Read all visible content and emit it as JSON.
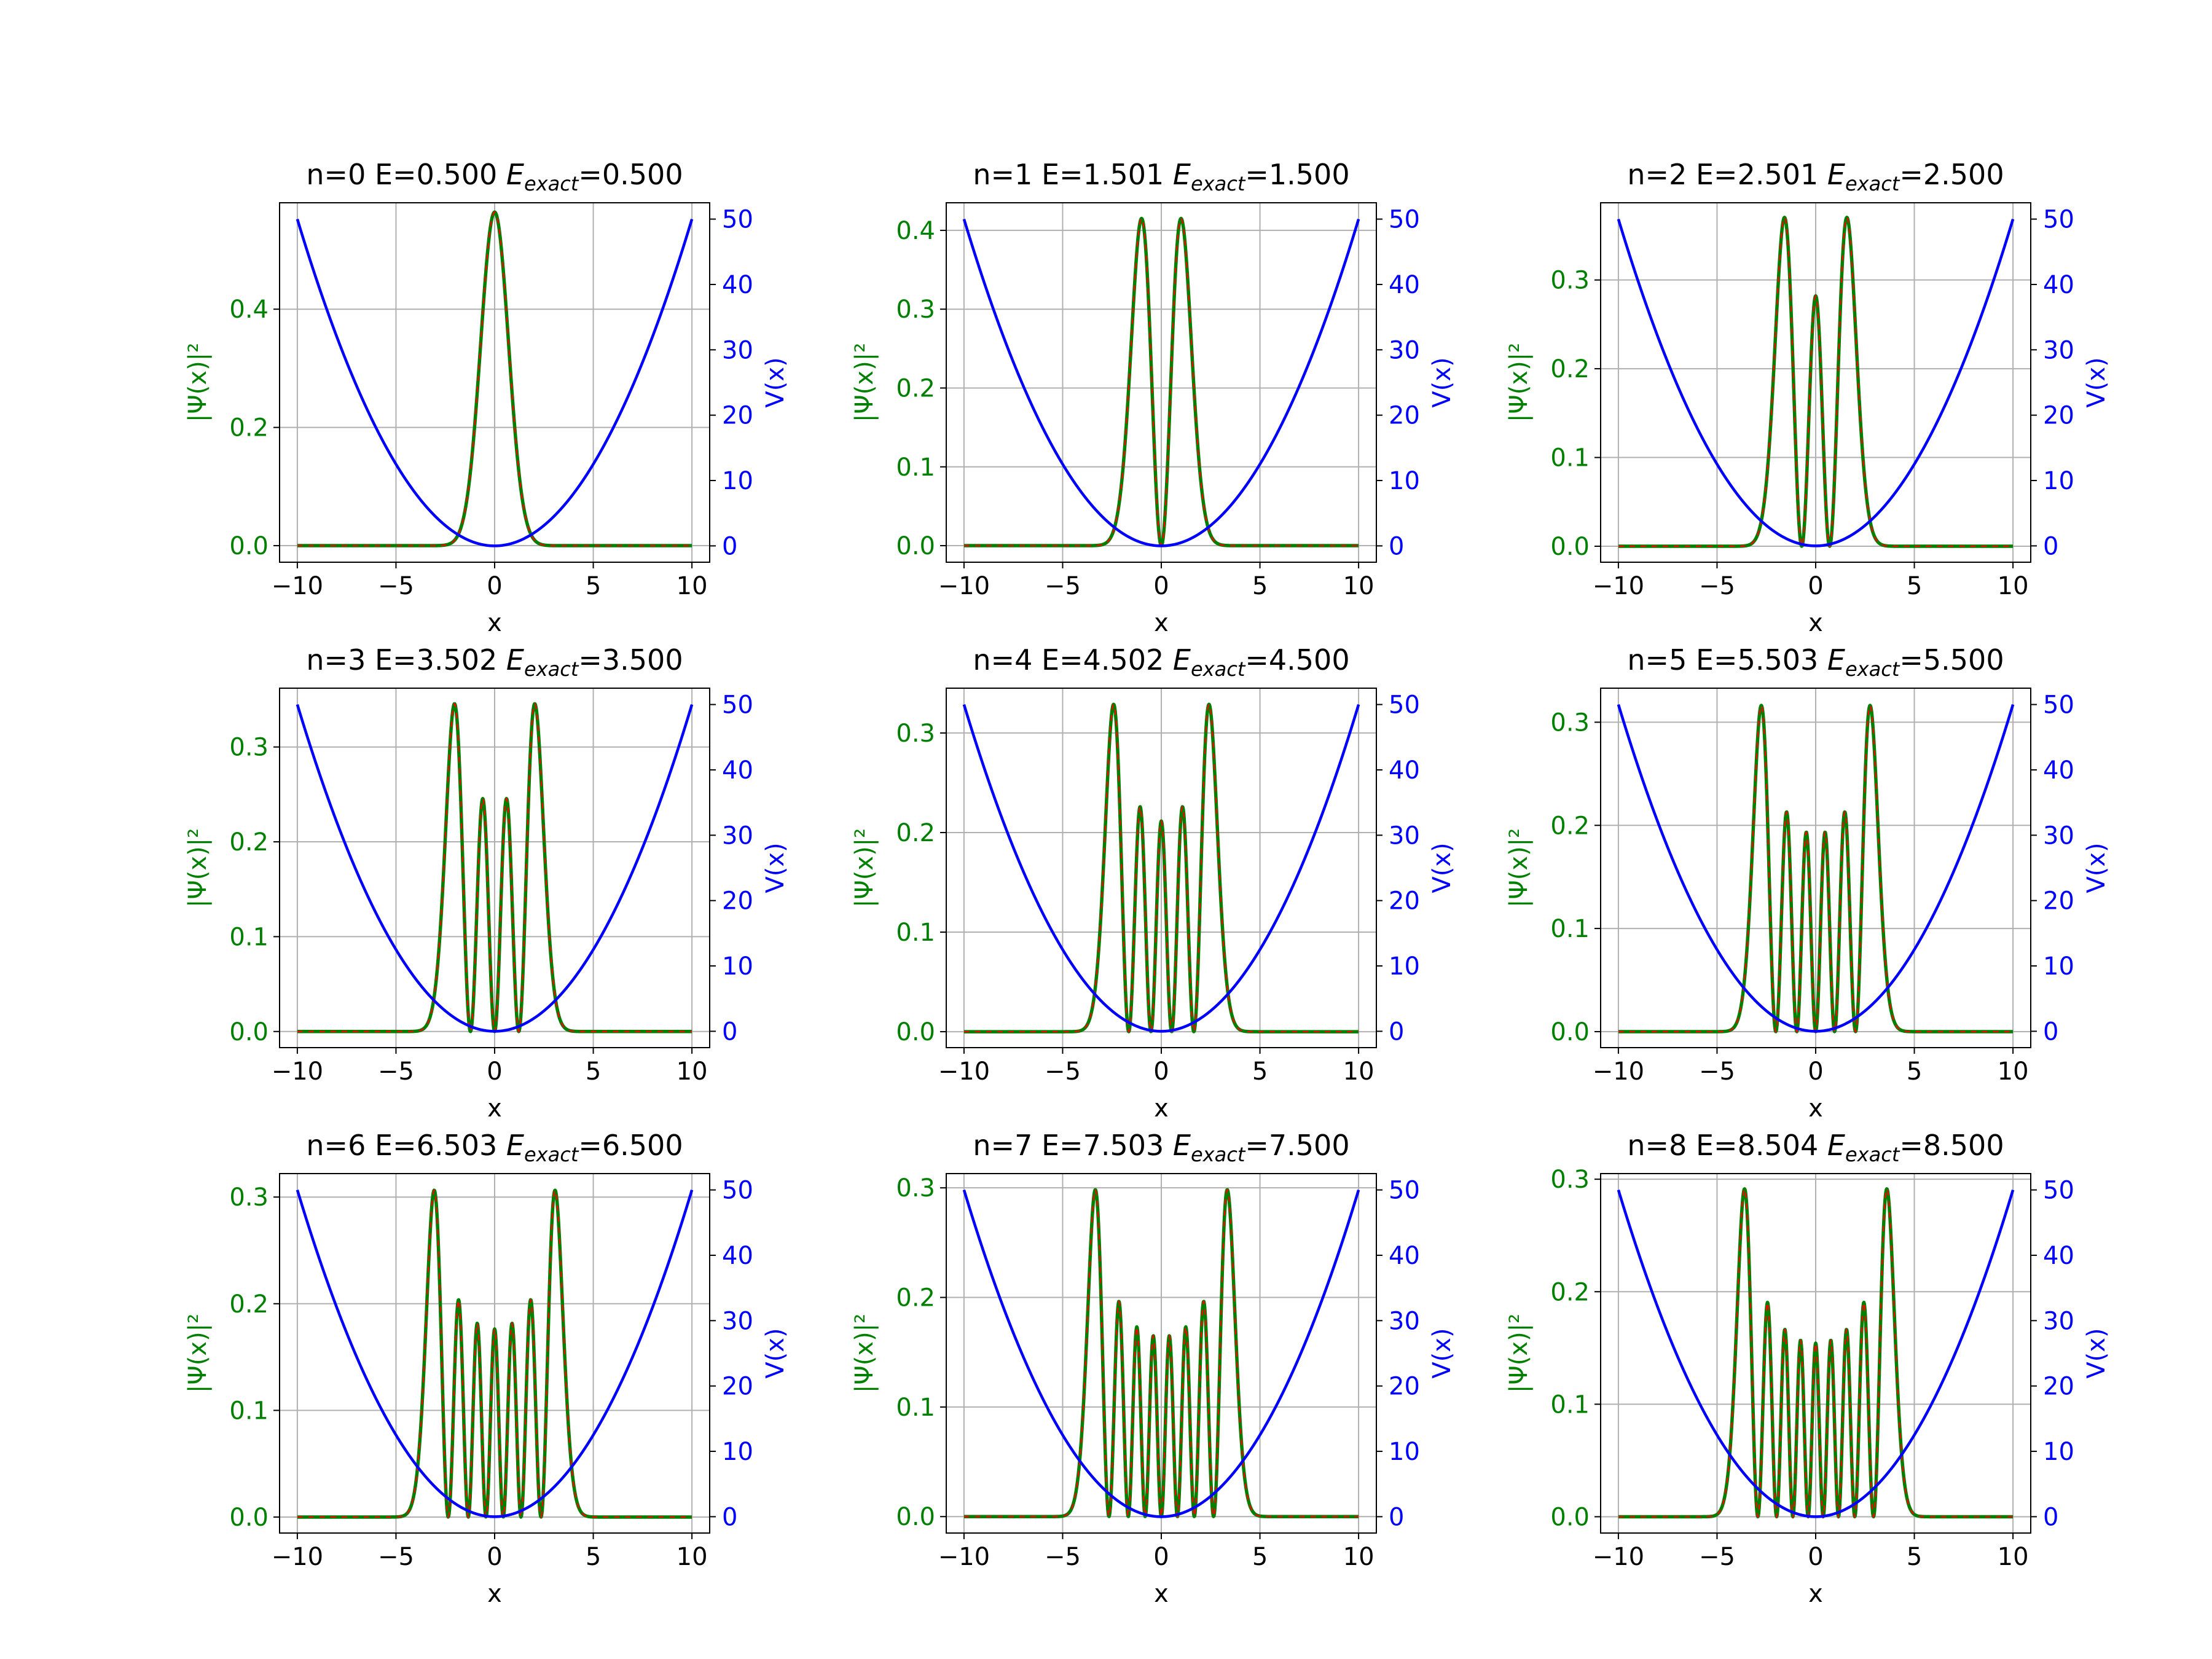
{
  "figure": {
    "background": "#ffffff"
  },
  "colors": {
    "psi_numeric": "#008000",
    "psi_exact": "#ff0000",
    "potential": "#0000ff",
    "grid": "#b0b0b0",
    "frame": "#000000"
  },
  "chart_data": [
    {
      "type": "line",
      "n": 0,
      "title": "n=0 E=0.500",
      "title_exact_label": "E",
      "title_exact_sub": "exact",
      "title_exact_value": "=0.500",
      "xlabel": "x",
      "ylabel_left": "|Ψ(x)|²",
      "ylabel_right": "V(x)",
      "xlim": [
        -10.9,
        10.9
      ],
      "ylim_left": [
        -0.028,
        0.58
      ],
      "ylim_right": [
        -2.5,
        52.5
      ],
      "xticks": [
        -10,
        -5,
        0,
        5,
        10
      ],
      "xtick_labels": [
        "−10",
        "−5",
        "0",
        "5",
        "10"
      ],
      "yticks_left": [
        0.0,
        0.2,
        0.4
      ],
      "ytick_labels_left": [
        "0.0",
        "0.2",
        "0.4"
      ],
      "yticks_right": [
        0,
        10,
        20,
        30,
        40,
        50
      ],
      "ytick_labels_right": [
        "0",
        "10",
        "20",
        "30",
        "40",
        "50"
      ],
      "grid": true,
      "series": [
        {
          "role": "numeric",
          "style": "solid"
        },
        {
          "role": "exact",
          "style": "dashed"
        },
        {
          "role": "potential",
          "function": "0.5*x^2"
        }
      ]
    },
    {
      "type": "line",
      "n": 1,
      "title": "n=1 E=1.501",
      "title_exact_label": "E",
      "title_exact_sub": "exact",
      "title_exact_value": "=1.500",
      "xlabel": "x",
      "ylabel_left": "|Ψ(x)|²",
      "ylabel_right": "V(x)",
      "xlim": [
        -10.9,
        10.9
      ],
      "ylim_left": [
        -0.021,
        0.435
      ],
      "ylim_right": [
        -2.5,
        52.5
      ],
      "xticks": [
        -10,
        -5,
        0,
        5,
        10
      ],
      "xtick_labels": [
        "−10",
        "−5",
        "0",
        "5",
        "10"
      ],
      "yticks_left": [
        0.0,
        0.1,
        0.2,
        0.3,
        0.4
      ],
      "ytick_labels_left": [
        "0.0",
        "0.1",
        "0.2",
        "0.3",
        "0.4"
      ],
      "yticks_right": [
        0,
        10,
        20,
        30,
        40,
        50
      ],
      "ytick_labels_right": [
        "0",
        "10",
        "20",
        "30",
        "40",
        "50"
      ],
      "grid": true,
      "series": [
        {
          "role": "numeric",
          "style": "solid"
        },
        {
          "role": "exact",
          "style": "dashed"
        },
        {
          "role": "potential",
          "function": "0.5*x^2"
        }
      ]
    },
    {
      "type": "line",
      "n": 2,
      "title": "n=2 E=2.501",
      "title_exact_label": "E",
      "title_exact_sub": "exact",
      "title_exact_value": "=2.500",
      "xlabel": "x",
      "ylabel_left": "|Ψ(x)|²",
      "ylabel_right": "V(x)",
      "xlim": [
        -10.9,
        10.9
      ],
      "ylim_left": [
        -0.018,
        0.387
      ],
      "ylim_right": [
        -2.5,
        52.5
      ],
      "xticks": [
        -10,
        -5,
        0,
        5,
        10
      ],
      "xtick_labels": [
        "−10",
        "−5",
        "0",
        "5",
        "10"
      ],
      "yticks_left": [
        0.0,
        0.1,
        0.2,
        0.3
      ],
      "ytick_labels_left": [
        "0.0",
        "0.1",
        "0.2",
        "0.3"
      ],
      "yticks_right": [
        0,
        10,
        20,
        30,
        40,
        50
      ],
      "ytick_labels_right": [
        "0",
        "10",
        "20",
        "30",
        "40",
        "50"
      ],
      "grid": true,
      "series": [
        {
          "role": "numeric",
          "style": "solid"
        },
        {
          "role": "exact",
          "style": "dashed"
        },
        {
          "role": "potential",
          "function": "0.5*x^2"
        }
      ]
    },
    {
      "type": "line",
      "n": 3,
      "title": "n=3 E=3.502",
      "title_exact_label": "E",
      "title_exact_sub": "exact",
      "title_exact_value": "=3.500",
      "xlabel": "x",
      "ylabel_left": "|Ψ(x)|²",
      "ylabel_right": "V(x)",
      "xlim": [
        -10.9,
        10.9
      ],
      "ylim_left": [
        -0.017,
        0.362
      ],
      "ylim_right": [
        -2.5,
        52.5
      ],
      "xticks": [
        -10,
        -5,
        0,
        5,
        10
      ],
      "xtick_labels": [
        "−10",
        "−5",
        "0",
        "5",
        "10"
      ],
      "yticks_left": [
        0.0,
        0.1,
        0.2,
        0.3
      ],
      "ytick_labels_left": [
        "0.0",
        "0.1",
        "0.2",
        "0.3"
      ],
      "yticks_right": [
        0,
        10,
        20,
        30,
        40,
        50
      ],
      "ytick_labels_right": [
        "0",
        "10",
        "20",
        "30",
        "40",
        "50"
      ],
      "grid": true,
      "series": [
        {
          "role": "numeric",
          "style": "solid"
        },
        {
          "role": "exact",
          "style": "dashed"
        },
        {
          "role": "potential",
          "function": "0.5*x^2"
        }
      ]
    },
    {
      "type": "line",
      "n": 4,
      "title": "n=4 E=4.502",
      "title_exact_label": "E",
      "title_exact_sub": "exact",
      "title_exact_value": "=4.500",
      "xlabel": "x",
      "ylabel_left": "|Ψ(x)|²",
      "ylabel_right": "V(x)",
      "xlim": [
        -10.9,
        10.9
      ],
      "ylim_left": [
        -0.016,
        0.345
      ],
      "ylim_right": [
        -2.5,
        52.5
      ],
      "xticks": [
        -10,
        -5,
        0,
        5,
        10
      ],
      "xtick_labels": [
        "−10",
        "−5",
        "0",
        "5",
        "10"
      ],
      "yticks_left": [
        0.0,
        0.1,
        0.2,
        0.3
      ],
      "ytick_labels_left": [
        "0.0",
        "0.1",
        "0.2",
        "0.3"
      ],
      "yticks_right": [
        0,
        10,
        20,
        30,
        40,
        50
      ],
      "ytick_labels_right": [
        "0",
        "10",
        "20",
        "30",
        "40",
        "50"
      ],
      "grid": true,
      "series": [
        {
          "role": "numeric",
          "style": "solid"
        },
        {
          "role": "exact",
          "style": "dashed"
        },
        {
          "role": "potential",
          "function": "0.5*x^2"
        }
      ]
    },
    {
      "type": "line",
      "n": 5,
      "title": "n=5 E=5.503",
      "title_exact_label": "E",
      "title_exact_sub": "exact",
      "title_exact_value": "=5.500",
      "xlabel": "x",
      "ylabel_left": "|Ψ(x)|²",
      "ylabel_right": "V(x)",
      "xlim": [
        -10.9,
        10.9
      ],
      "ylim_left": [
        -0.0155,
        0.333
      ],
      "ylim_right": [
        -2.5,
        52.5
      ],
      "xticks": [
        -10,
        -5,
        0,
        5,
        10
      ],
      "xtick_labels": [
        "−10",
        "−5",
        "0",
        "5",
        "10"
      ],
      "yticks_left": [
        0.0,
        0.1,
        0.2,
        0.3
      ],
      "ytick_labels_left": [
        "0.0",
        "0.1",
        "0.2",
        "0.3"
      ],
      "yticks_right": [
        0,
        10,
        20,
        30,
        40,
        50
      ],
      "ytick_labels_right": [
        "0",
        "10",
        "20",
        "30",
        "40",
        "50"
      ],
      "grid": true,
      "series": [
        {
          "role": "numeric",
          "style": "solid"
        },
        {
          "role": "exact",
          "style": "dashed"
        },
        {
          "role": "potential",
          "function": "0.5*x^2"
        }
      ]
    },
    {
      "type": "line",
      "n": 6,
      "title": "n=6 E=6.503",
      "title_exact_label": "E",
      "title_exact_sub": "exact",
      "title_exact_value": "=6.500",
      "xlabel": "x",
      "ylabel_left": "|Ψ(x)|²",
      "ylabel_right": "V(x)",
      "xlim": [
        -10.9,
        10.9
      ],
      "ylim_left": [
        -0.015,
        0.322
      ],
      "ylim_right": [
        -2.5,
        52.5
      ],
      "xticks": [
        -10,
        -5,
        0,
        5,
        10
      ],
      "xtick_labels": [
        "−10",
        "−5",
        "0",
        "5",
        "10"
      ],
      "yticks_left": [
        0.0,
        0.1,
        0.2,
        0.3
      ],
      "ytick_labels_left": [
        "0.0",
        "0.1",
        "0.2",
        "0.3"
      ],
      "yticks_right": [
        0,
        10,
        20,
        30,
        40,
        50
      ],
      "ytick_labels_right": [
        "0",
        "10",
        "20",
        "30",
        "40",
        "50"
      ],
      "grid": true,
      "series": [
        {
          "role": "numeric",
          "style": "solid"
        },
        {
          "role": "exact",
          "style": "dashed"
        },
        {
          "role": "potential",
          "function": "0.5*x^2"
        }
      ]
    },
    {
      "type": "line",
      "n": 7,
      "title": "n=7 E=7.503",
      "title_exact_label": "E",
      "title_exact_sub": "exact",
      "title_exact_value": "=7.500",
      "xlabel": "x",
      "ylabel_left": "|Ψ(x)|²",
      "ylabel_right": "V(x)",
      "xlim": [
        -10.9,
        10.9
      ],
      "ylim_left": [
        -0.015,
        0.313
      ],
      "ylim_right": [
        -2.5,
        52.5
      ],
      "xticks": [
        -10,
        -5,
        0,
        5,
        10
      ],
      "xtick_labels": [
        "−10",
        "−5",
        "0",
        "5",
        "10"
      ],
      "yticks_left": [
        0.0,
        0.1,
        0.2,
        0.3
      ],
      "ytick_labels_left": [
        "0.0",
        "0.1",
        "0.2",
        "0.3"
      ],
      "yticks_right": [
        0,
        10,
        20,
        30,
        40,
        50
      ],
      "ytick_labels_right": [
        "0",
        "10",
        "20",
        "30",
        "40",
        "50"
      ],
      "grid": true,
      "series": [
        {
          "role": "numeric",
          "style": "solid"
        },
        {
          "role": "exact",
          "style": "dashed"
        },
        {
          "role": "potential",
          "function": "0.5*x^2"
        }
      ]
    },
    {
      "type": "line",
      "n": 8,
      "title": "n=8 E=8.504",
      "title_exact_label": "E",
      "title_exact_sub": "exact",
      "title_exact_value": "=8.500",
      "xlabel": "x",
      "ylabel_left": "|Ψ(x)|²",
      "ylabel_right": "V(x)",
      "xlim": [
        -10.9,
        10.9
      ],
      "ylim_left": [
        -0.0145,
        0.305
      ],
      "ylim_right": [
        -2.5,
        52.5
      ],
      "xticks": [
        -10,
        -5,
        0,
        5,
        10
      ],
      "xtick_labels": [
        "−10",
        "−5",
        "0",
        "5",
        "10"
      ],
      "yticks_left": [
        0.0,
        0.1,
        0.2,
        0.3
      ],
      "ytick_labels_left": [
        "0.0",
        "0.1",
        "0.2",
        "0.3"
      ],
      "yticks_right": [
        0,
        10,
        20,
        30,
        40,
        50
      ],
      "ytick_labels_right": [
        "0",
        "10",
        "20",
        "30",
        "40",
        "50"
      ],
      "grid": true,
      "series": [
        {
          "role": "numeric",
          "style": "solid"
        },
        {
          "role": "exact",
          "style": "dashed"
        },
        {
          "role": "potential",
          "function": "0.5*x^2"
        }
      ]
    }
  ]
}
